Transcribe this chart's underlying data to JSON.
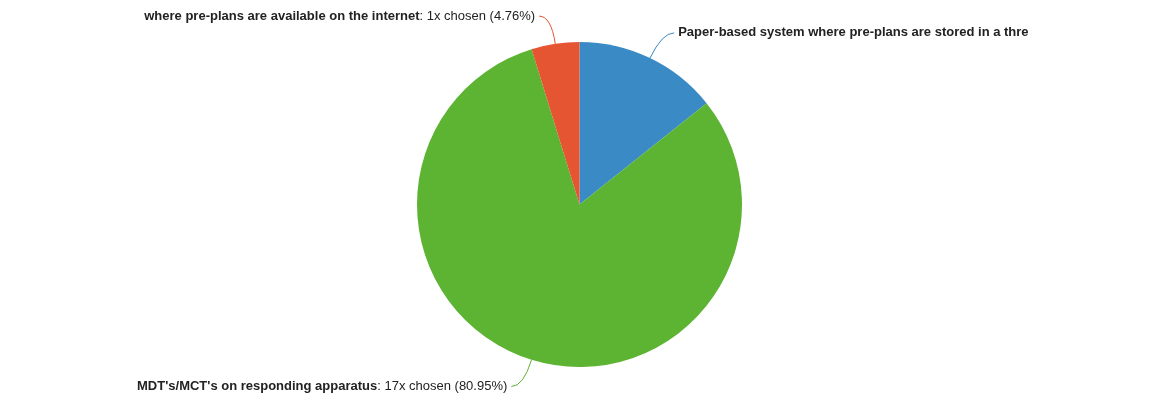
{
  "chart_data": {
    "type": "pie",
    "categories": [
      "Paper-based system where pre-plans are stored in a thre",
      "MDT's/MCT's on responding apparatus",
      "where pre-plans are available on the internet"
    ],
    "values": [
      14.29,
      80.95,
      4.76
    ],
    "colors": [
      "#3a8ac6",
      "#5db332",
      "#e65532"
    ],
    "value_labels": [
      null,
      ": 17x chosen (80.95%)",
      ": 1x chosen (4.76%)"
    ],
    "legend": false
  }
}
